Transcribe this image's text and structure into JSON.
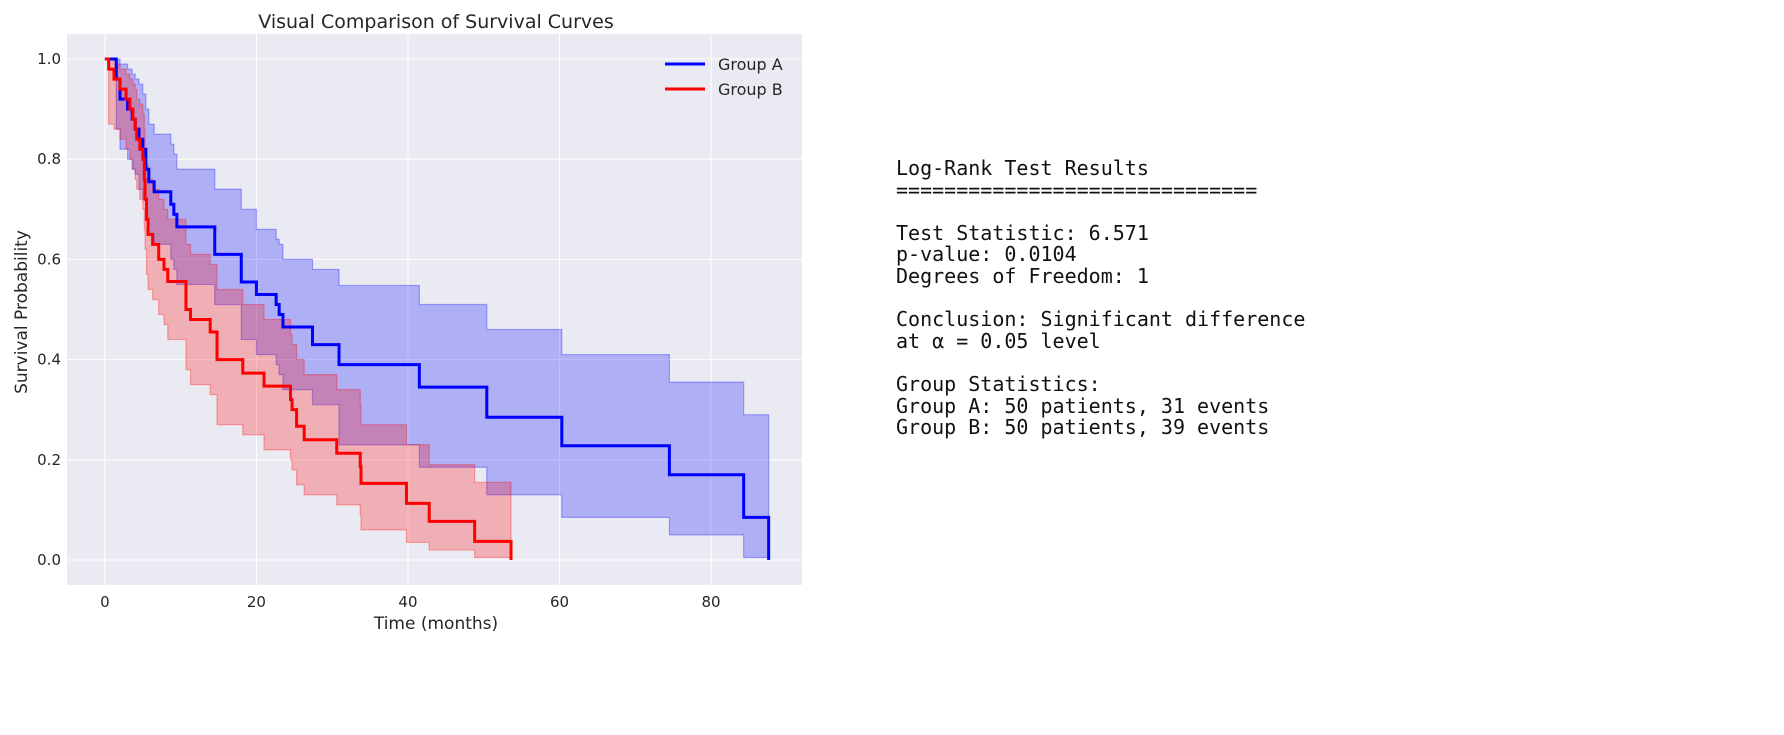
{
  "chart_data": {
    "type": "line",
    "title": "Visual Comparison of Survival Curves",
    "xlabel": "Time (months)",
    "ylabel": "Survival Probability",
    "xlim": [
      -5,
      92
    ],
    "ylim": [
      -0.05,
      1.05
    ],
    "xticks": [
      "0",
      "20",
      "40",
      "60",
      "80"
    ],
    "xtick_values": [
      0,
      20,
      40,
      60,
      80
    ],
    "yticks": [
      "0.0",
      "0.2",
      "0.4",
      "0.6",
      "0.8",
      "1.0"
    ],
    "ytick_values": [
      0,
      0.2,
      0.4,
      0.6,
      0.8,
      1.0
    ],
    "grid": true,
    "legend_position": "top-right",
    "series": [
      {
        "name": "Group A",
        "color": "#0000ff",
        "step": "post",
        "t": [
          0,
          1.5,
          2,
          3,
          3.6,
          4,
          4.5,
          5,
          5.4,
          5.8,
          6.5,
          8.7,
          9.1,
          9.5,
          14.5,
          18,
          20,
          22.6,
          23,
          23.5,
          27.4,
          30.9,
          41.5,
          50.4,
          60.3,
          74.5,
          84.3,
          87.6
        ],
        "s": [
          1,
          0.96,
          0.92,
          0.9,
          0.88,
          0.86,
          0.84,
          0.82,
          0.78,
          0.755,
          0.735,
          0.71,
          0.69,
          0.665,
          0.61,
          0.555,
          0.53,
          0.51,
          0.49,
          0.465,
          0.43,
          0.39,
          0.345,
          0.285,
          0.228,
          0.17,
          0.085,
          0
        ],
        "ci_lower": [
          1,
          0.86,
          0.82,
          0.8,
          0.78,
          0.77,
          0.74,
          0.72,
          0.68,
          0.65,
          0.63,
          0.6,
          0.58,
          0.55,
          0.51,
          0.44,
          0.41,
          0.39,
          0.37,
          0.34,
          0.31,
          0.23,
          0.185,
          0.13,
          0.085,
          0.05,
          0.005,
          0.005
        ],
        "ci_upper": [
          1,
          1,
          0.99,
          0.98,
          0.97,
          0.96,
          0.95,
          0.93,
          0.9,
          0.87,
          0.85,
          0.83,
          0.81,
          0.78,
          0.74,
          0.7,
          0.66,
          0.64,
          0.63,
          0.6,
          0.58,
          0.548,
          0.51,
          0.46,
          0.41,
          0.355,
          0.29,
          0.29
        ]
      },
      {
        "name": "Group B",
        "color": "#ff0000",
        "step": "post",
        "t": [
          0,
          0.5,
          1.2,
          2,
          2.8,
          3.3,
          3.7,
          4,
          4.2,
          4.6,
          5,
          5.2,
          5.3,
          5.5,
          5.7,
          6.3,
          7.1,
          7.8,
          8.3,
          10.7,
          11.3,
          13.9,
          14.8,
          18.2,
          21,
          24.5,
          24.7,
          25.3,
          26.3,
          30.6,
          33.7,
          33.8,
          39.8,
          42.8,
          48.8,
          53.6
        ],
        "s": [
          1,
          0.98,
          0.96,
          0.94,
          0.92,
          0.9,
          0.88,
          0.86,
          0.84,
          0.82,
          0.8,
          0.76,
          0.72,
          0.68,
          0.65,
          0.63,
          0.6,
          0.58,
          0.556,
          0.5,
          0.48,
          0.455,
          0.4,
          0.373,
          0.347,
          0.32,
          0.3,
          0.267,
          0.24,
          0.213,
          0.187,
          0.153,
          0.113,
          0.077,
          0.037,
          0
        ],
        "ci_lower": [
          1,
          0.87,
          0.86,
          0.84,
          0.82,
          0.8,
          0.78,
          0.76,
          0.74,
          0.72,
          0.7,
          0.66,
          0.62,
          0.57,
          0.54,
          0.52,
          0.49,
          0.47,
          0.44,
          0.38,
          0.35,
          0.33,
          0.27,
          0.25,
          0.22,
          0.2,
          0.18,
          0.15,
          0.13,
          0.11,
          0.09,
          0.06,
          0.035,
          0.02,
          0.005,
          0.005
        ],
        "ci_upper": [
          1,
          1,
          0.99,
          0.98,
          0.97,
          0.96,
          0.95,
          0.94,
          0.92,
          0.91,
          0.89,
          0.86,
          0.82,
          0.79,
          0.76,
          0.74,
          0.72,
          0.7,
          0.68,
          0.63,
          0.61,
          0.59,
          0.54,
          0.51,
          0.48,
          0.45,
          0.43,
          0.4,
          0.37,
          0.34,
          0.31,
          0.27,
          0.23,
          0.19,
          0.155,
          0.155
        ]
      }
    ]
  },
  "stats_panel": {
    "lines": [
      "Log-Rank Test Results",
      "==============================",
      "",
      "Test Statistic: 6.571",
      "p-value: 0.0104",
      "Degrees of Freedom: 1",
      "",
      "Conclusion: Significant difference",
      "at α = 0.05 level",
      "",
      "Group Statistics:",
      "Group A: 50 patients, 31 events",
      "Group B: 50 patients, 39 events"
    ]
  }
}
